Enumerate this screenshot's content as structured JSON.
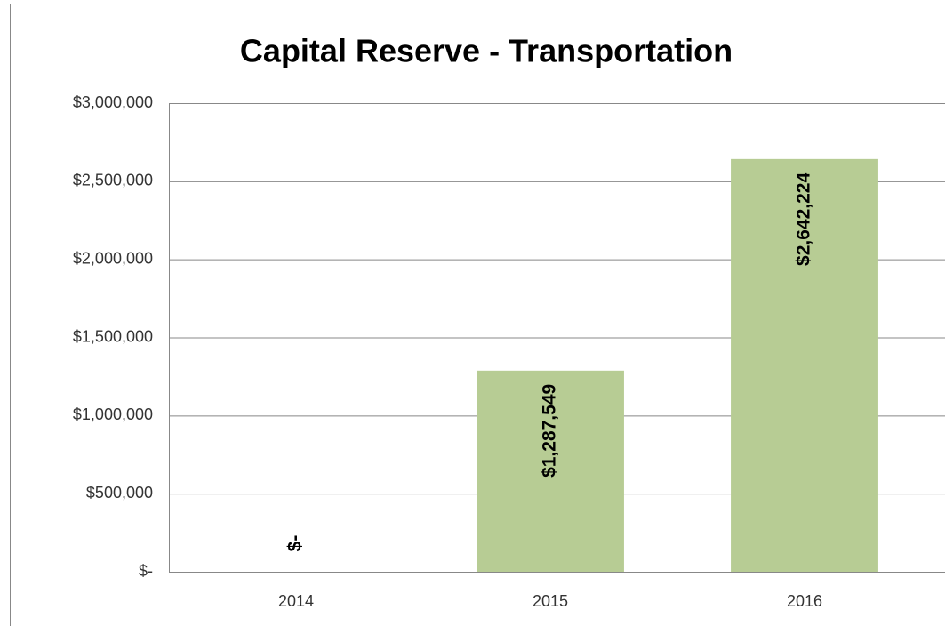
{
  "chart_data": {
    "type": "bar",
    "title": "Capital Reserve - Transportation",
    "categories": [
      "2014",
      "2015",
      "2016"
    ],
    "values": [
      0,
      1287549,
      2642224
    ],
    "value_labels": [
      "$-",
      "$1,287,549",
      "$2,642,224"
    ],
    "color": "#b7cc94",
    "ylim": [
      0,
      3000000
    ],
    "yticks": [
      {
        "value": 0,
        "label": "$-"
      },
      {
        "value": 500000,
        "label": "$500,000"
      },
      {
        "value": 1000000,
        "label": "$1,000,000"
      },
      {
        "value": 1500000,
        "label": "$1,500,000"
      },
      {
        "value": 2000000,
        "label": "$2,000,000"
      },
      {
        "value": 2500000,
        "label": "$2,500,000"
      },
      {
        "value": 3000000,
        "label": "$3,000,000"
      }
    ],
    "grid": true
  }
}
